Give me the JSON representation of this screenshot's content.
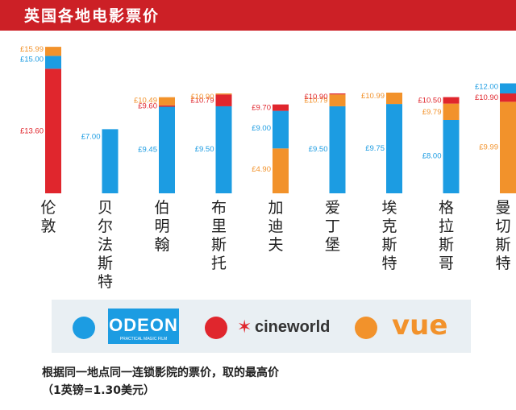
{
  "title": "英国各地电影票价",
  "chart_data": {
    "type": "bar",
    "stacked": true,
    "currency": "£",
    "ylim": [
      0,
      16
    ],
    "grid": false,
    "categories": [
      {
        "name": "伦敦",
        "chars": [
          "伦",
          "敦"
        ]
      },
      {
        "name": "贝尔法斯特",
        "chars": [
          "贝",
          "尔",
          "法",
          "斯",
          "特"
        ]
      },
      {
        "name": "伯明翰",
        "chars": [
          "伯",
          "明",
          "翰"
        ]
      },
      {
        "name": "布里斯托",
        "chars": [
          "布",
          "里",
          "斯",
          "托"
        ]
      },
      {
        "name": "加迪夫",
        "chars": [
          "加",
          "迪",
          "夫"
        ]
      },
      {
        "name": "爱丁堡",
        "chars": [
          "爱",
          "丁",
          "堡"
        ]
      },
      {
        "name": "埃克斯特",
        "chars": [
          "埃",
          "克",
          "斯",
          "特"
        ]
      },
      {
        "name": "格拉斯哥",
        "chars": [
          "格",
          "拉",
          "斯",
          "哥"
        ]
      },
      {
        "name": "曼切斯特",
        "chars": [
          "曼",
          "切",
          "斯",
          "特"
        ]
      }
    ],
    "bars": [
      [
        {
          "chain": "cineworld",
          "value": 13.6,
          "label": "£13.60"
        },
        {
          "chain": "odeon",
          "value": 15.0,
          "label": "£15.00"
        },
        {
          "chain": "vue",
          "value": 15.99,
          "label": "£15.99"
        }
      ],
      [
        {
          "chain": "odeon",
          "value": 7.0,
          "label": "£7.00"
        }
      ],
      [
        {
          "chain": "odeon",
          "value": 9.45,
          "label": "£9.45"
        },
        {
          "chain": "cineworld",
          "value": 9.6,
          "label": "£9.60"
        },
        {
          "chain": "vue",
          "value": 10.49,
          "label": "£10.49"
        }
      ],
      [
        {
          "chain": "odeon",
          "value": 9.5,
          "label": "£9.50"
        },
        {
          "chain": "cineworld",
          "value": 10.79,
          "label": "£10.79"
        },
        {
          "chain": "vue",
          "value": 10.9,
          "label": "£10.90"
        }
      ],
      [
        {
          "chain": "vue",
          "value": 4.9,
          "label": "£4.90"
        },
        {
          "chain": "odeon",
          "value": 9.0,
          "label": "£9.00"
        },
        {
          "chain": "cineworld",
          "value": 9.7,
          "label": "£9.70"
        }
      ],
      [
        {
          "chain": "odeon",
          "value": 9.5,
          "label": "£9.50"
        },
        {
          "chain": "vue",
          "value": 10.79,
          "label": "£10.79"
        },
        {
          "chain": "cineworld",
          "value": 10.9,
          "label": "£10.90"
        }
      ],
      [
        {
          "chain": "odeon",
          "value": 9.75,
          "label": "£9.75"
        },
        {
          "chain": "vue",
          "value": 10.99,
          "label": "£10.99"
        }
      ],
      [
        {
          "chain": "odeon",
          "value": 8.0,
          "label": "£8.00"
        },
        {
          "chain": "vue",
          "value": 9.79,
          "label": "£9.79"
        },
        {
          "chain": "cineworld",
          "value": 10.5,
          "label": "£10.50"
        }
      ],
      [
        {
          "chain": "vue",
          "value": 9.99,
          "label": "£9.99"
        },
        {
          "chain": "cineworld",
          "value": 10.9,
          "label": "£10.90"
        },
        {
          "chain": "odeon",
          "value": 12.0,
          "label": "£12.00"
        }
      ]
    ],
    "legend": [
      {
        "chain": "odeon",
        "logo_text": "ODEON",
        "logo_subtext": "PRACTICAL MAGIC FILM",
        "color": "#1c9ce2"
      },
      {
        "chain": "cineworld",
        "logo_text": "cineworld",
        "color": "#e0262d"
      },
      {
        "chain": "vue",
        "logo_text": "vue",
        "color": "#f2922b"
      }
    ],
    "colors": {
      "odeon": "#1c9ce2",
      "cineworld": "#e0262d",
      "vue": "#f2922b"
    },
    "label_color": "#ffffff",
    "category_label_color": "#222222"
  },
  "note": {
    "line1": "根据同一地点同一连锁影院的票价，取的最高价",
    "line2": "（1英镑=1.30美元）"
  },
  "theme": {
    "title_bg": "#cc2026",
    "odeon_logo_bg": "#1c9ce2",
    "legend_bg": "#e9eff3"
  }
}
